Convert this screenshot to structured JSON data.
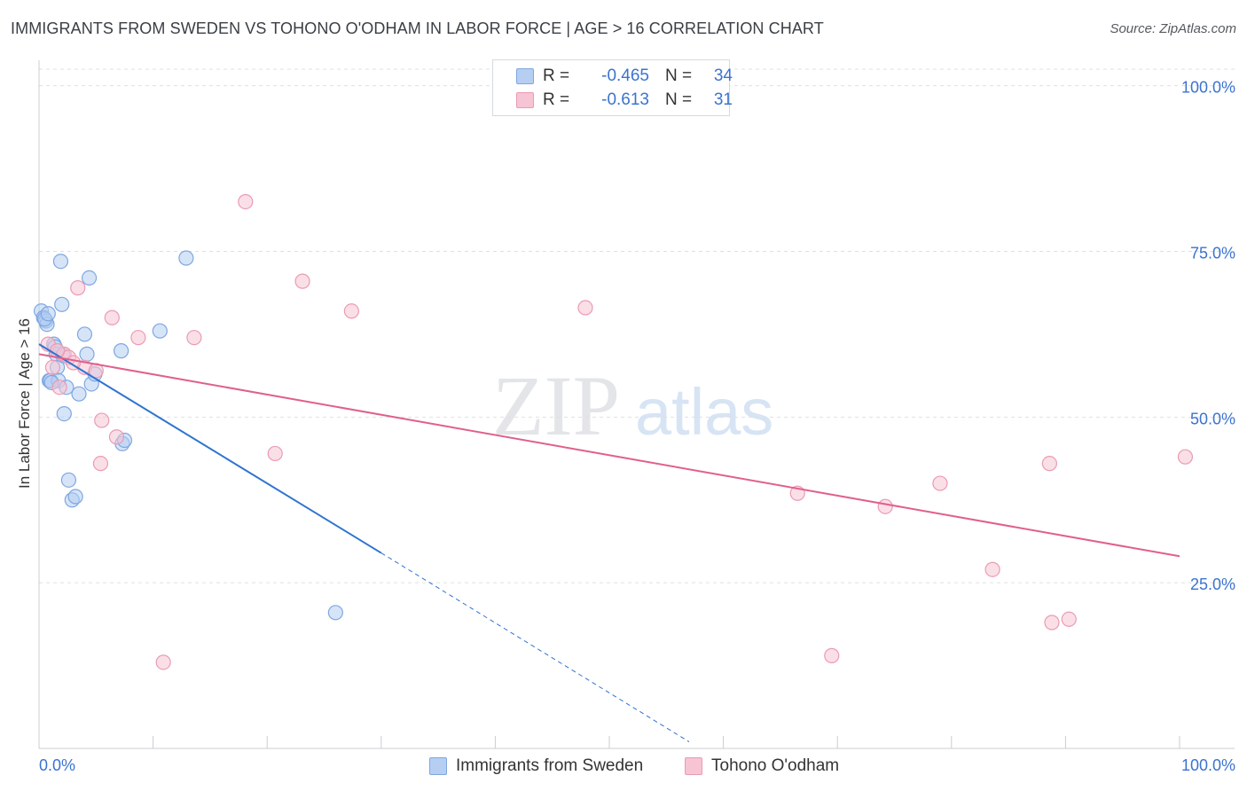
{
  "title": "IMMIGRANTS FROM SWEDEN VS TOHONO O'ODHAM IN LABOR FORCE | AGE > 16 CORRELATION CHART",
  "source": "Source: ZipAtlas.com",
  "watermark": {
    "zip": "ZIP",
    "atlas": "atlas"
  },
  "stats": [
    {
      "r_label": "R =",
      "r_value": "-0.465",
      "n_label": "N =",
      "n_value": "34"
    },
    {
      "r_label": "R =",
      "r_value": "-0.613",
      "n_label": "N =",
      "n_value": "31"
    }
  ],
  "legend": [
    {
      "label": "Immigrants from Sweden"
    },
    {
      "label": "Tohono O'odham"
    }
  ],
  "colors": {
    "sweden_fill": "#b5cef2",
    "sweden_stroke": "#7fa7e0",
    "sweden_line": "#2f74d0",
    "tohono_fill": "#f7c4d3",
    "tohono_stroke": "#ea9bb3",
    "tohono_line": "#e0608c",
    "tick_label": "#3a73d0",
    "grid": "#dde0e4"
  },
  "chart_data": {
    "type": "scatter",
    "title": "IMMIGRANTS FROM SWEDEN VS TOHONO O'ODHAM IN LABOR FORCE | AGE > 16 CORRELATION CHART",
    "xlabel": "",
    "ylabel": "In Labor Force | Age > 16",
    "xlim": [
      0,
      100
    ],
    "ylim": [
      0,
      102.5
    ],
    "x_tick_labels": [
      "0.0%",
      "100.0%"
    ],
    "y_ticks": [
      25,
      50,
      75,
      100
    ],
    "y_tick_labels": [
      "25.0%",
      "50.0%",
      "75.0%",
      "100.0%"
    ],
    "grid": true,
    "series": [
      {
        "name": "Immigrants from Sweden",
        "points": [
          [
            0.2,
            66.0
          ],
          [
            0.4,
            65.0
          ],
          [
            0.6,
            64.5
          ],
          [
            0.7,
            64.0
          ],
          [
            0.9,
            55.5
          ],
          [
            1.0,
            55.5
          ],
          [
            1.3,
            61.0
          ],
          [
            1.5,
            59.5
          ],
          [
            1.6,
            57.5
          ],
          [
            1.7,
            55.5
          ],
          [
            1.9,
            73.5
          ],
          [
            2.0,
            67.0
          ],
          [
            2.2,
            50.5
          ],
          [
            2.4,
            54.5
          ],
          [
            2.6,
            40.5
          ],
          [
            2.9,
            37.5
          ],
          [
            3.2,
            38.0
          ],
          [
            3.5,
            53.5
          ],
          [
            4.0,
            62.5
          ],
          [
            4.2,
            59.5
          ],
          [
            4.4,
            71.0
          ],
          [
            4.6,
            55.0
          ],
          [
            4.9,
            56.5
          ],
          [
            7.2,
            60.0
          ],
          [
            7.3,
            46.0
          ],
          [
            7.5,
            46.5
          ],
          [
            10.6,
            63.0
          ],
          [
            12.9,
            74.0
          ],
          [
            26.0,
            20.5
          ],
          [
            0.5,
            64.8
          ],
          [
            0.8,
            65.6
          ],
          [
            1.1,
            55.2
          ],
          [
            1.4,
            60.6
          ],
          [
            2.1,
            59.3
          ]
        ],
        "trend": {
          "x0": 0.0,
          "y0": 61.0,
          "x1": 30.0,
          "y1": 29.5,
          "dash_to_x": 57.0,
          "dash_to_y": 1.0
        }
      },
      {
        "name": "Tohono O'odham",
        "points": [
          [
            0.8,
            61.0
          ],
          [
            1.2,
            57.5
          ],
          [
            1.8,
            54.5
          ],
          [
            2.2,
            59.5
          ],
          [
            2.6,
            59.0
          ],
          [
            3.4,
            69.5
          ],
          [
            4.0,
            57.5
          ],
          [
            5.0,
            57.0
          ],
          [
            5.4,
            43.0
          ],
          [
            5.5,
            49.5
          ],
          [
            6.4,
            65.0
          ],
          [
            6.8,
            47.0
          ],
          [
            8.7,
            62.0
          ],
          [
            10.9,
            13.0
          ],
          [
            13.6,
            62.0
          ],
          [
            18.1,
            82.5
          ],
          [
            20.7,
            44.5
          ],
          [
            23.1,
            70.5
          ],
          [
            27.4,
            66.0
          ],
          [
            47.9,
            66.5
          ],
          [
            66.5,
            38.5
          ],
          [
            69.5,
            14.0
          ],
          [
            74.2,
            36.5
          ],
          [
            79.0,
            40.0
          ],
          [
            83.6,
            27.0
          ],
          [
            88.6,
            43.0
          ],
          [
            88.8,
            19.0
          ],
          [
            90.3,
            19.5
          ],
          [
            100.5,
            44.0
          ],
          [
            1.6,
            60.0
          ],
          [
            3.0,
            58.2
          ]
        ],
        "trend": {
          "x0": 0.0,
          "y0": 59.5,
          "x1": 100.0,
          "y1": 29.0
        }
      }
    ]
  }
}
